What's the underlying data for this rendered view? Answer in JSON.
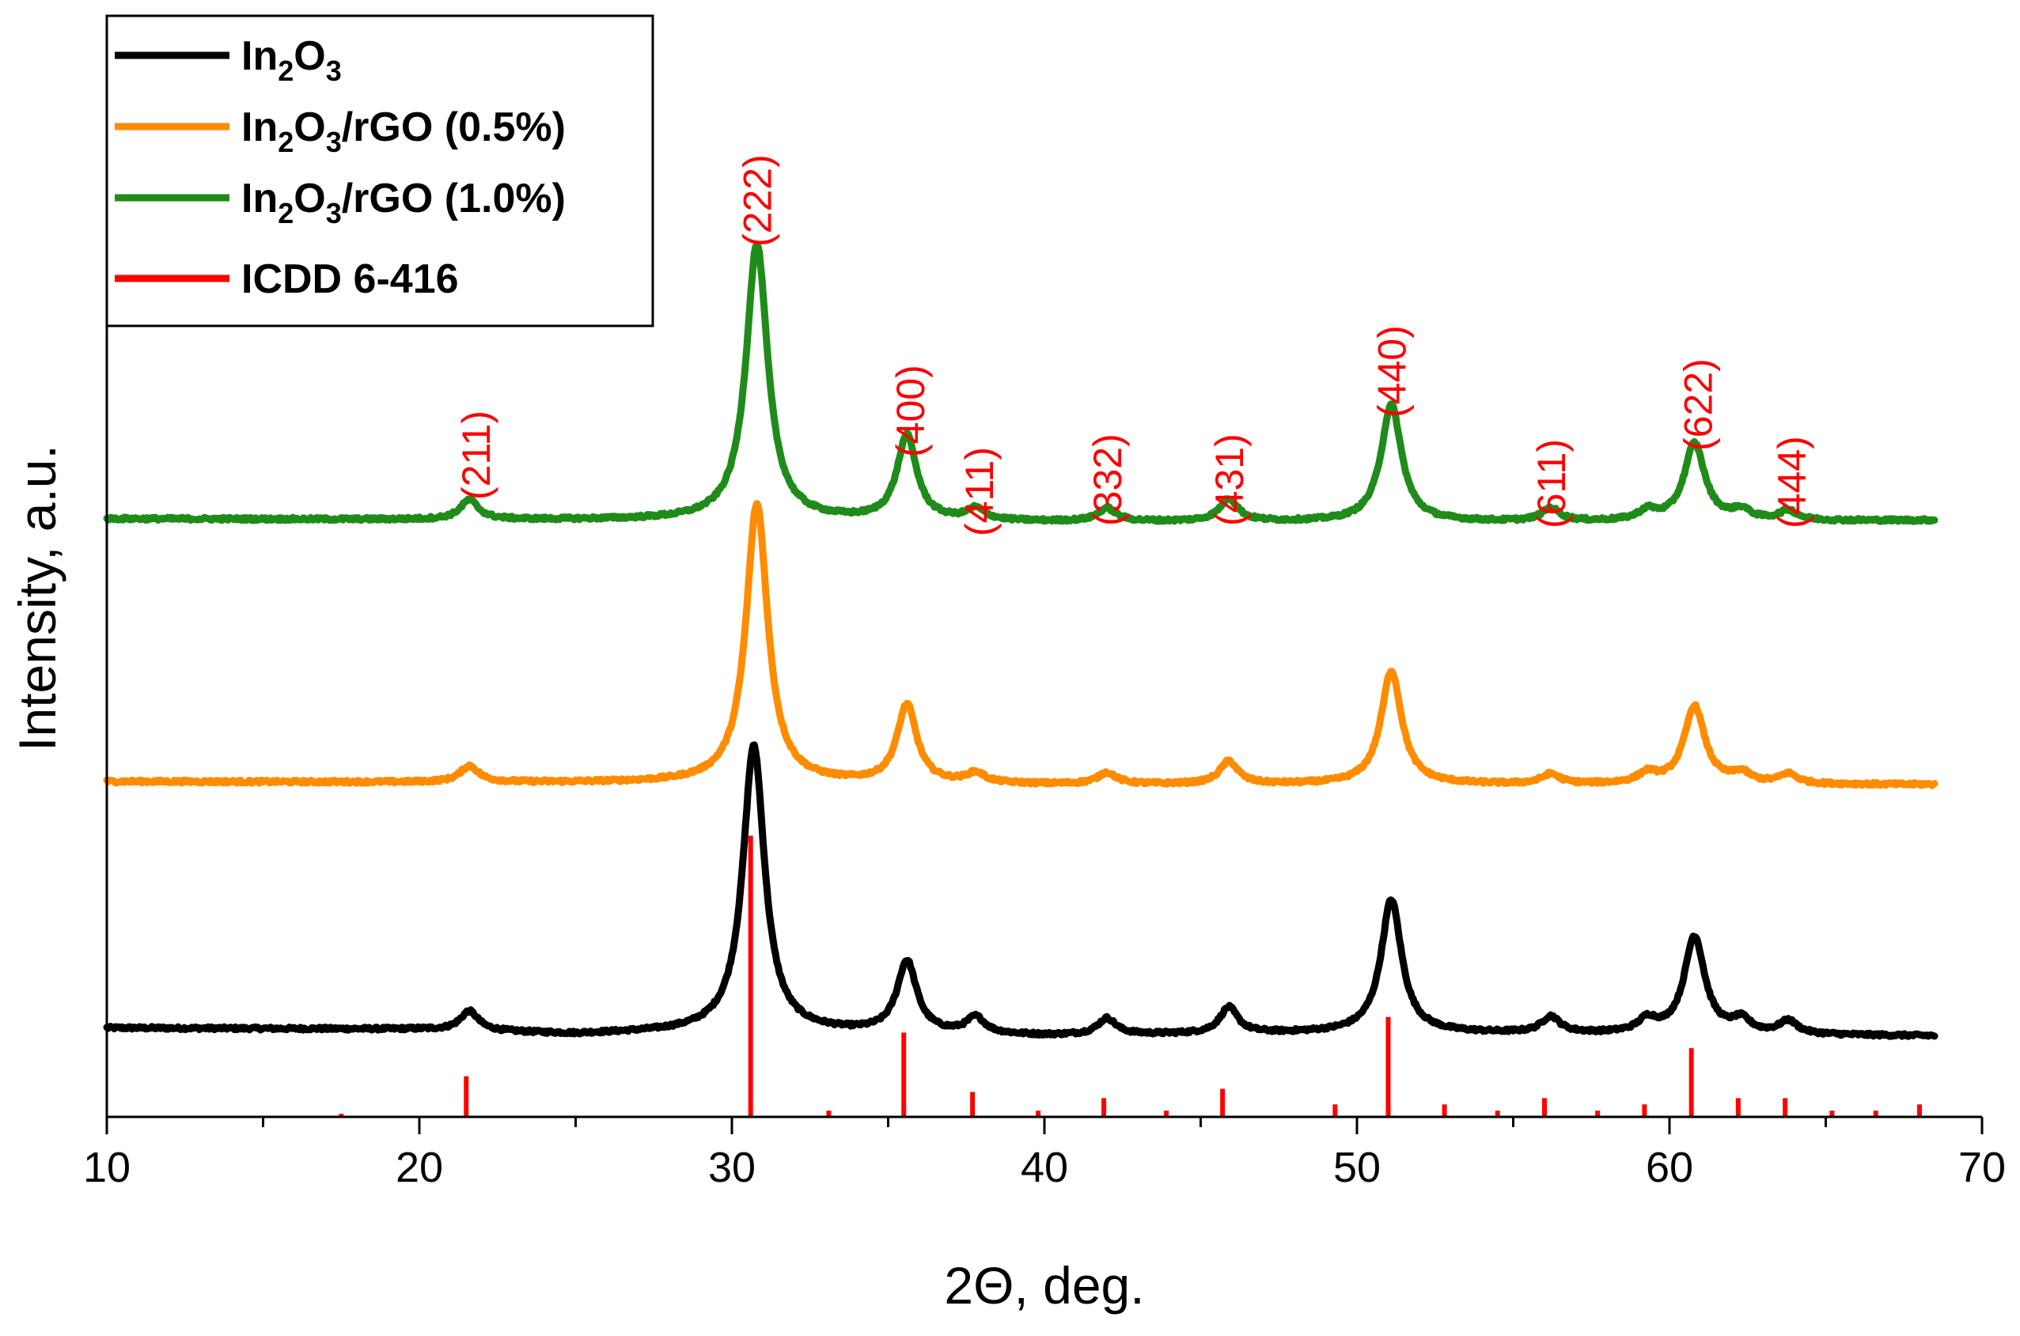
{
  "chart_data": {
    "type": "line",
    "title": "",
    "xlabel": "2Θ, deg.",
    "ylabel": "Intensity, a.u.",
    "xlim": [
      10,
      70
    ],
    "xticks": [
      "10",
      "20",
      "30",
      "40",
      "50",
      "60",
      "70"
    ],
    "yticks": [],
    "grid": false,
    "legend_position": "top-left",
    "series": [
      {
        "name": "In2O3",
        "legend_base": "In",
        "legend_sub1": "2",
        "legend_mid": "O",
        "legend_sub2": "3",
        "legend_suffix": "",
        "color": "#000000",
        "baseline": [
          [
            10,
            4.5
          ],
          [
            20,
            4.0
          ],
          [
            25,
            2.5
          ],
          [
            30,
            3.5
          ],
          [
            40,
            2.0
          ],
          [
            50,
            3.0
          ],
          [
            60,
            2.5
          ],
          [
            68.5,
            2.0
          ]
        ],
        "peaks": [
          {
            "x": 21.6,
            "height": 6,
            "width": 0.35
          },
          {
            "x": 30.7,
            "height": 88,
            "width": 0.42
          },
          {
            "x": 35.6,
            "height": 22,
            "width": 0.38
          },
          {
            "x": 37.8,
            "height": 5,
            "width": 0.35
          },
          {
            "x": 42.0,
            "height": 5,
            "width": 0.35
          },
          {
            "x": 45.9,
            "height": 8,
            "width": 0.35
          },
          {
            "x": 51.1,
            "height": 41,
            "width": 0.4
          },
          {
            "x": 56.2,
            "height": 5,
            "width": 0.35
          },
          {
            "x": 59.3,
            "height": 4,
            "width": 0.35
          },
          {
            "x": 60.8,
            "height": 30,
            "width": 0.4
          },
          {
            "x": 62.3,
            "height": 4,
            "width": 0.35
          },
          {
            "x": 63.8,
            "height": 4,
            "width": 0.35
          }
        ],
        "offset": 0
      },
      {
        "name": "In2O3/rGO (0.5%)",
        "legend_base": "In",
        "legend_sub1": "2",
        "legend_mid": "O",
        "legend_sub2": "3",
        "legend_suffix": "/rGO (0.5%)",
        "color": "#ff8c00",
        "baseline": [
          [
            10,
            1.5
          ],
          [
            20,
            1.2
          ],
          [
            30,
            1.0
          ],
          [
            40,
            0.5
          ],
          [
            50,
            0.5
          ],
          [
            60,
            0.5
          ],
          [
            68.5,
            0.5
          ]
        ],
        "peaks": [
          {
            "x": 21.6,
            "height": 5,
            "width": 0.35
          },
          {
            "x": 30.8,
            "height": 86,
            "width": 0.42
          },
          {
            "x": 35.6,
            "height": 24,
            "width": 0.38
          },
          {
            "x": 37.8,
            "height": 3,
            "width": 0.35
          },
          {
            "x": 42.0,
            "height": 3.5,
            "width": 0.35
          },
          {
            "x": 45.9,
            "height": 7,
            "width": 0.35
          },
          {
            "x": 51.1,
            "height": 35,
            "width": 0.4
          },
          {
            "x": 56.2,
            "height": 3,
            "width": 0.35
          },
          {
            "x": 59.3,
            "height": 3,
            "width": 0.35
          },
          {
            "x": 60.8,
            "height": 24,
            "width": 0.4
          },
          {
            "x": 62.3,
            "height": 3,
            "width": 0.35
          },
          {
            "x": 63.8,
            "height": 3,
            "width": 0.35
          }
        ],
        "offset": 79
      },
      {
        "name": "In2O3/rGO (1.0%)",
        "legend_base": "In",
        "legend_sub1": "2",
        "legend_mid": "O",
        "legend_sub2": "3",
        "legend_suffix": "/rGO (1.0%)",
        "color": "#1f8c1a",
        "baseline": [
          [
            10,
            1.5
          ],
          [
            20,
            1.2
          ],
          [
            30,
            1.0
          ],
          [
            40,
            0.5
          ],
          [
            50,
            0.5
          ],
          [
            60,
            0.5
          ],
          [
            68.5,
            1.0
          ]
        ],
        "peaks": [
          {
            "x": 21.6,
            "height": 6,
            "width": 0.35
          },
          {
            "x": 30.8,
            "height": 85,
            "width": 0.42
          },
          {
            "x": 35.6,
            "height": 26,
            "width": 0.38
          },
          {
            "x": 37.8,
            "height": 3.5,
            "width": 0.35
          },
          {
            "x": 42.0,
            "height": 4,
            "width": 0.35
          },
          {
            "x": 45.9,
            "height": 7,
            "width": 0.35
          },
          {
            "x": 51.1,
            "height": 36,
            "width": 0.4
          },
          {
            "x": 56.2,
            "height": 4,
            "width": 0.35
          },
          {
            "x": 59.3,
            "height": 3,
            "width": 0.35
          },
          {
            "x": 60.8,
            "height": 24,
            "width": 0.4
          },
          {
            "x": 62.3,
            "height": 3,
            "width": 0.35
          },
          {
            "x": 63.8,
            "height": 3,
            "width": 0.35
          }
        ],
        "offset": 160
      }
    ],
    "reference": {
      "name": "ICDD 6-416",
      "color": "#ff0000",
      "sticks": [
        {
          "x": 17.5,
          "y": 1
        },
        {
          "x": 21.5,
          "y": 13
        },
        {
          "x": 30.6,
          "y": 90
        },
        {
          "x": 33.1,
          "y": 2
        },
        {
          "x": 35.5,
          "y": 27
        },
        {
          "x": 37.7,
          "y": 8
        },
        {
          "x": 39.8,
          "y": 2
        },
        {
          "x": 41.9,
          "y": 6
        },
        {
          "x": 43.9,
          "y": 2
        },
        {
          "x": 45.7,
          "y": 9
        },
        {
          "x": 49.3,
          "y": 4
        },
        {
          "x": 51.0,
          "y": 32
        },
        {
          "x": 52.8,
          "y": 4
        },
        {
          "x": 54.5,
          "y": 2
        },
        {
          "x": 56.0,
          "y": 6
        },
        {
          "x": 57.7,
          "y": 2
        },
        {
          "x": 59.2,
          "y": 4
        },
        {
          "x": 60.7,
          "y": 22
        },
        {
          "x": 62.2,
          "y": 6
        },
        {
          "x": 63.7,
          "y": 6
        },
        {
          "x": 65.2,
          "y": 2
        },
        {
          "x": 66.6,
          "y": 2
        },
        {
          "x": 68.0,
          "y": 4
        }
      ]
    },
    "hkl_labels": [
      {
        "text": "(211)",
        "x": 21.8
      },
      {
        "text": "(222)",
        "x": 30.8
      },
      {
        "text": "(400)",
        "x": 35.7
      },
      {
        "text": "(411)",
        "x": 37.9
      },
      {
        "text": "(332)",
        "x": 42.0
      },
      {
        "text": "(431)",
        "x": 45.9
      },
      {
        "text": "(440)",
        "x": 51.1
      },
      {
        "text": "(611)",
        "x": 56.2
      },
      {
        "text": "(622)",
        "x": 60.9
      },
      {
        "text": "(444)",
        "x": 63.9
      }
    ],
    "legend": [
      {
        "series": 0
      },
      {
        "series": 1
      },
      {
        "series": 2
      },
      {
        "reference": true
      }
    ]
  }
}
